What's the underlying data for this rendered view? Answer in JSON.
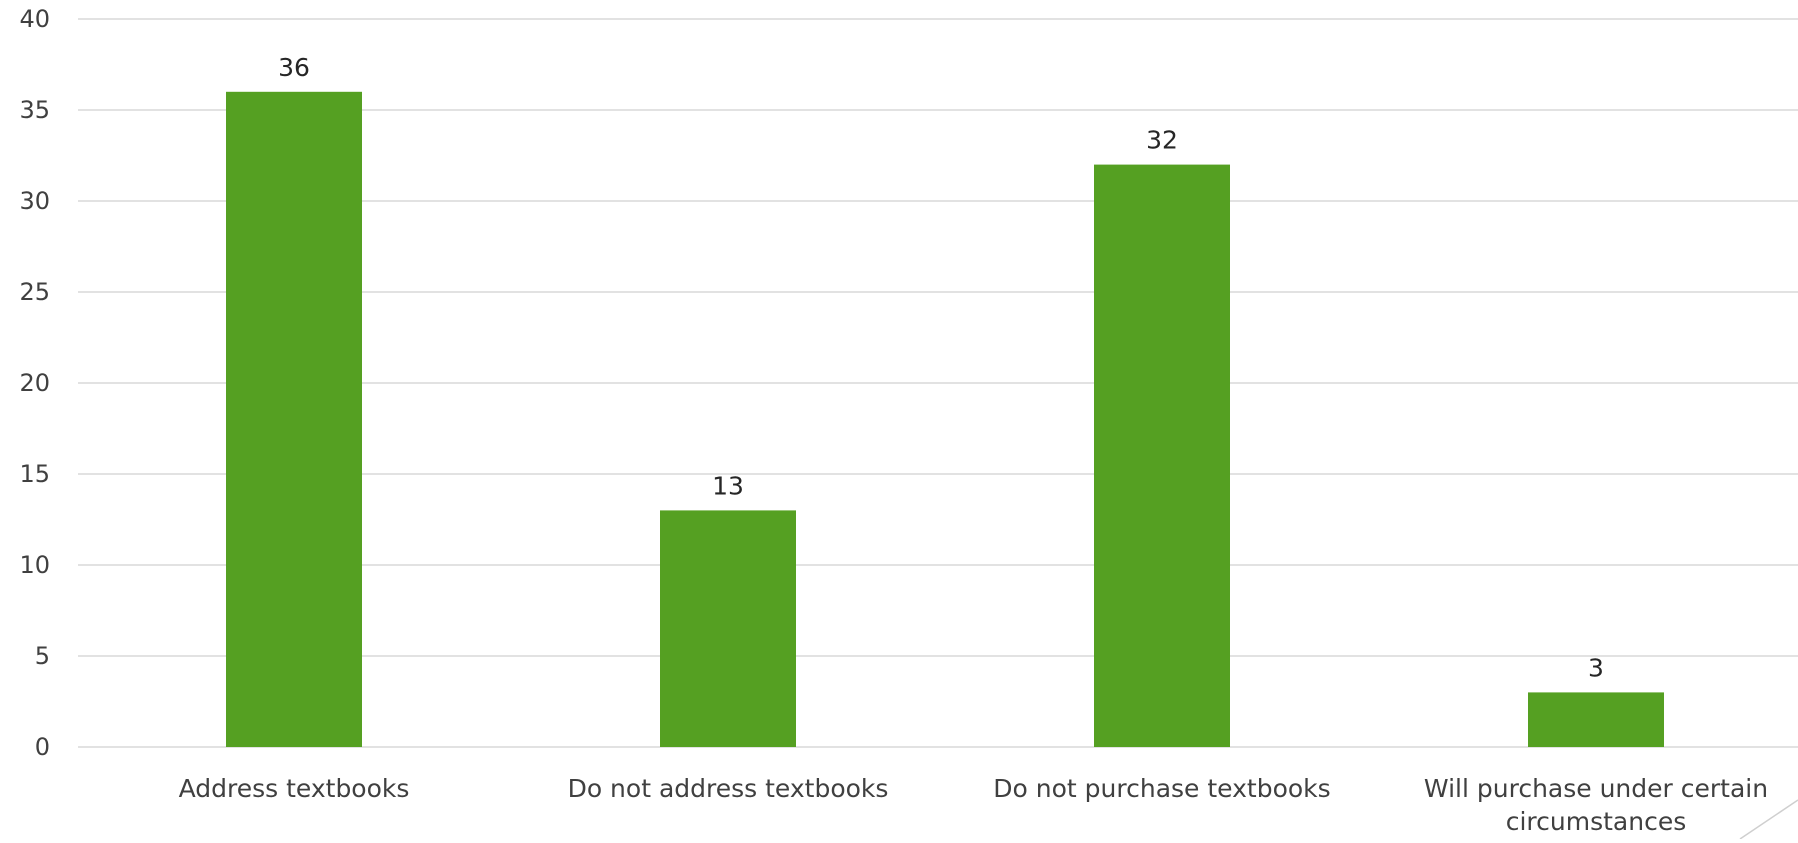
{
  "chart_data": {
    "type": "bar",
    "categories": [
      [
        "Address textbooks"
      ],
      [
        "Do not address textbooks"
      ],
      [
        "Do not purchase textbooks"
      ],
      [
        "Will purchase under certain",
        "circumstances"
      ]
    ],
    "values": [
      36,
      13,
      32,
      3
    ],
    "ylim": [
      0,
      40
    ],
    "yticks": [
      0,
      5,
      10,
      15,
      20,
      25,
      30,
      35,
      40
    ],
    "grid": true,
    "data_labels": true,
    "bar_color": "#55a022",
    "title": "",
    "xlabel": "",
    "ylabel": ""
  }
}
